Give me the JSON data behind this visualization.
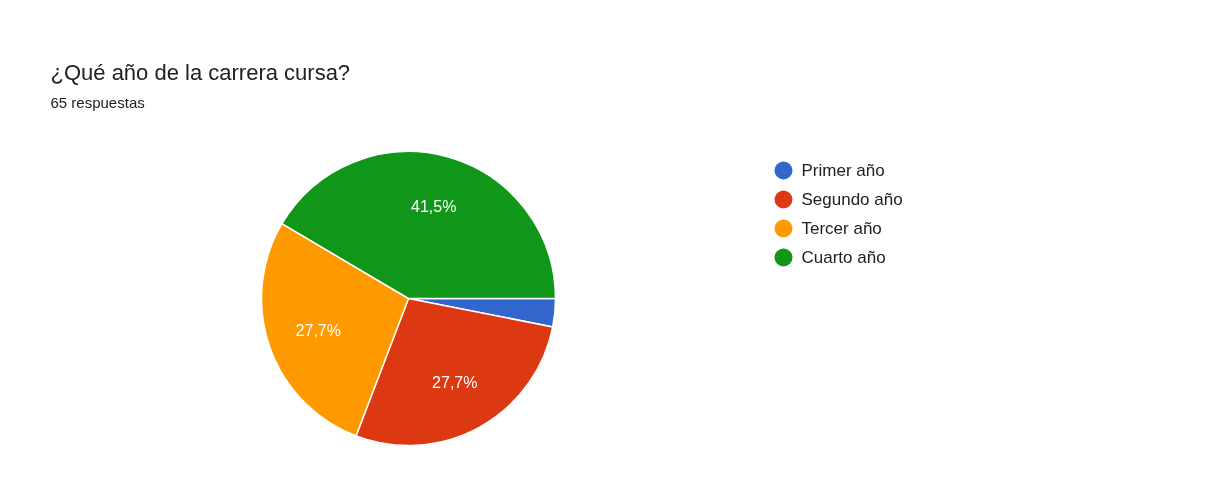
{
  "chart_data": {
    "type": "pie",
    "title": "¿Qué año de la carrera cursa?",
    "subtitle": "65 respuestas",
    "categories": [
      "Primer año",
      "Segundo año",
      "Tercer año",
      "Cuarto año"
    ],
    "values": [
      3.1,
      27.7,
      27.7,
      41.5
    ],
    "colors": [
      "#3366cc",
      "#dc3912",
      "#ff9900",
      "#109618"
    ],
    "value_labels": [
      null,
      "27,7%",
      "27,7%",
      "41,5%"
    ],
    "legend": "right"
  }
}
